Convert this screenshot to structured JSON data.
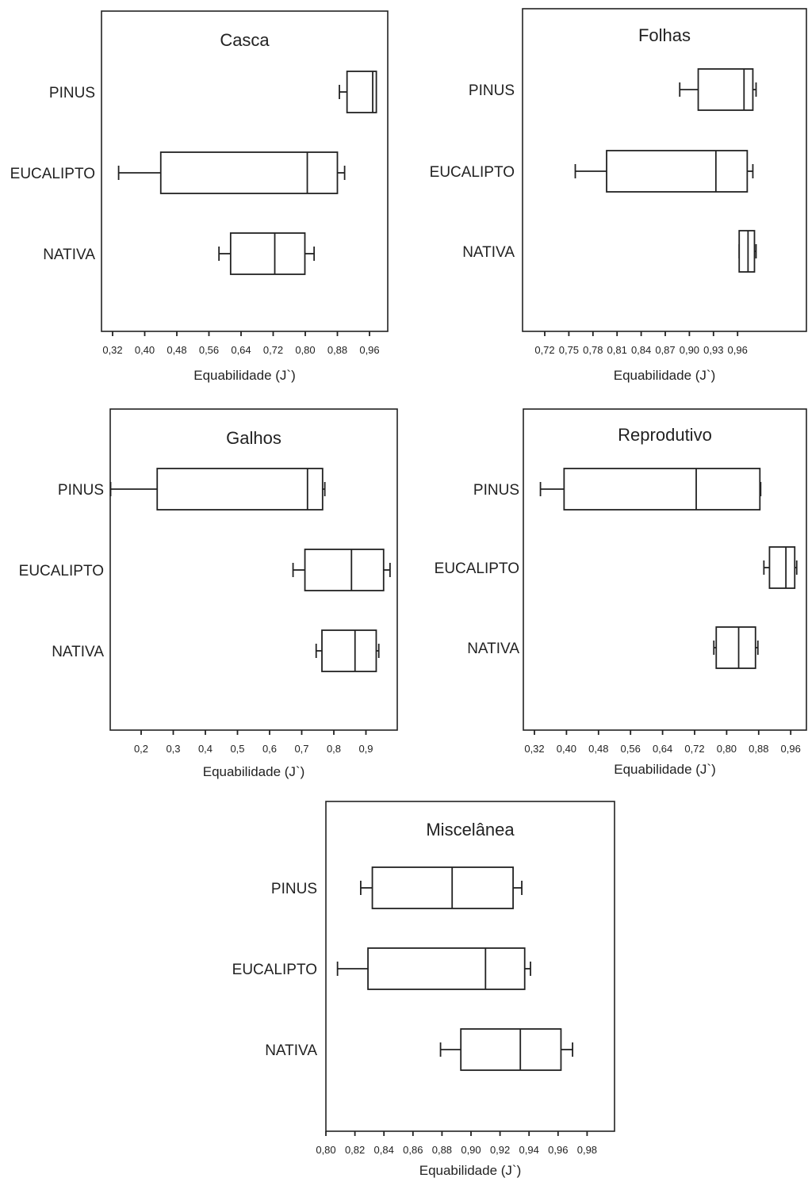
{
  "chart_data": [
    {
      "type": "boxplot",
      "title": "Casca",
      "xlabel": "Equabilidade (J`)",
      "xlim": [
        0.32,
        0.98
      ],
      "ticks": [
        "0,32",
        "0,40",
        "0,48",
        "0,56",
        "0,64",
        "0,72",
        "0,80",
        "0,88",
        "0,96"
      ],
      "categories": [
        "PINUS",
        "EUCALIPTO",
        "NATIVA"
      ],
      "boxes": [
        {
          "name": "PINUS",
          "min": 0.885,
          "q1": 0.904,
          "median": 0.968,
          "q3": 0.977,
          "max": 0.977
        },
        {
          "name": "EUCALIPTO",
          "min": 0.335,
          "q1": 0.44,
          "median": 0.805,
          "q3": 0.88,
          "max": 0.898
        },
        {
          "name": "NATIVA",
          "min": 0.585,
          "q1": 0.614,
          "median": 0.724,
          "q3": 0.799,
          "max": 0.822
        }
      ]
    },
    {
      "type": "boxplot",
      "title": "Folhas",
      "xlabel": "Equabilidade (J`)",
      "xlim": [
        0.7,
        0.985
      ],
      "ticks": [
        "0,72",
        "0,75",
        "0,78",
        "0,81",
        "0,84",
        "0,87",
        "0,90",
        "0,93",
        "0,96"
      ],
      "categories": [
        "PINUS",
        "EUCALIPTO",
        "NATIVA"
      ],
      "boxes": [
        {
          "name": "PINUS",
          "min": 0.888,
          "q1": 0.911,
          "median": 0.968,
          "q3": 0.979,
          "max": 0.983
        },
        {
          "name": "EUCALIPTO",
          "min": 0.758,
          "q1": 0.797,
          "median": 0.933,
          "q3": 0.972,
          "max": 0.979
        },
        {
          "name": "NATIVA",
          "min": 0.962,
          "q1": 0.962,
          "median": 0.973,
          "q3": 0.981,
          "max": 0.983
        }
      ]
    },
    {
      "type": "boxplot",
      "title": "Galhos",
      "xlabel": "Equabilidade (J`)",
      "xlim": [
        0.09,
        0.99
      ],
      "ticks": [
        "0,2",
        "0,3",
        "0,4",
        "0,5",
        "0,6",
        "0,7",
        "0,8",
        "0,9"
      ],
      "categories": [
        "PINUS",
        "EUCALIPTO",
        "NATIVA"
      ],
      "boxes": [
        {
          "name": "PINUS",
          "min": 0.105,
          "q1": 0.25,
          "median": 0.718,
          "q3": 0.765,
          "max": 0.772
        },
        {
          "name": "EUCALIPTO",
          "min": 0.673,
          "q1": 0.71,
          "median": 0.855,
          "q3": 0.955,
          "max": 0.975
        },
        {
          "name": "NATIVA",
          "min": 0.745,
          "q1": 0.763,
          "median": 0.866,
          "q3": 0.932,
          "max": 0.94
        }
      ]
    },
    {
      "type": "boxplot",
      "title": "Reprodutivo",
      "xlabel": "Equabilidade (J`)",
      "xlim": [
        0.3,
        0.985
      ],
      "ticks": [
        "0,32",
        "0,40",
        "0,48",
        "0,56",
        "0,64",
        "0,72",
        "0,80",
        "0,88",
        "0,96"
      ],
      "categories": [
        "PINUS",
        "EUCALIPTO",
        "NATIVA"
      ],
      "boxes": [
        {
          "name": "PINUS",
          "min": 0.335,
          "q1": 0.394,
          "median": 0.724,
          "q3": 0.883,
          "max": 0.885
        },
        {
          "name": "EUCALIPTO",
          "min": 0.893,
          "q1": 0.907,
          "median": 0.948,
          "q3": 0.97,
          "max": 0.975
        },
        {
          "name": "NATIVA",
          "min": 0.768,
          "q1": 0.774,
          "median": 0.83,
          "q3": 0.872,
          "max": 0.878
        }
      ]
    },
    {
      "type": "boxplot",
      "title": "Miscelânea",
      "xlabel": "Equabilidade (J`)",
      "xlim": [
        0.8,
        0.99
      ],
      "ticks": [
        "0,80",
        "0,82",
        "0,84",
        "0,86",
        "0,88",
        "0,90",
        "0,92",
        "0,94",
        "0,96",
        "0,98"
      ],
      "categories": [
        "PINUS",
        "EUCALIPTO",
        "NATIVA"
      ],
      "boxes": [
        {
          "name": "PINUS",
          "min": 0.824,
          "q1": 0.832,
          "median": 0.887,
          "q3": 0.929,
          "max": 0.935
        },
        {
          "name": "EUCALIPTO",
          "min": 0.808,
          "q1": 0.829,
          "median": 0.91,
          "q3": 0.937,
          "max": 0.941
        },
        {
          "name": "NATIVA",
          "min": 0.879,
          "q1": 0.893,
          "median": 0.934,
          "q3": 0.962,
          "max": 0.97
        }
      ]
    }
  ]
}
